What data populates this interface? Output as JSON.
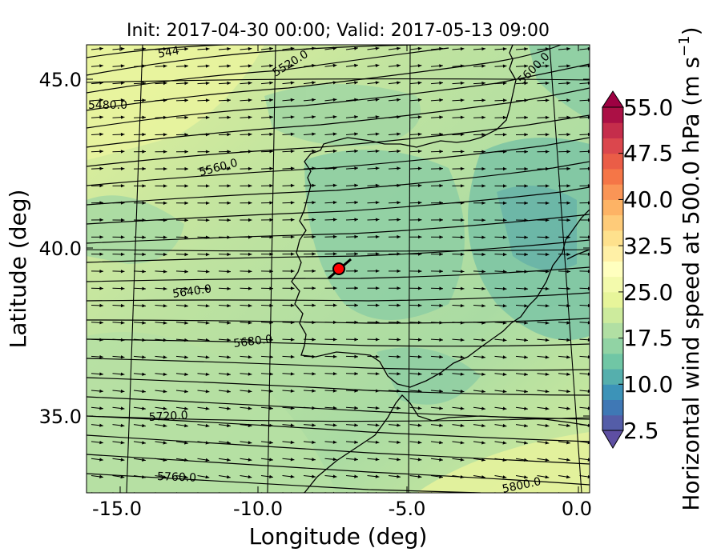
{
  "title": "Init: 2017-04-30 00:00; Valid: 2017-05-13 09:00",
  "axes": {
    "xlabel": "Longitude (deg)",
    "ylabel": "Latitude (deg)",
    "x_ticks": [
      "-15.0",
      "-10.0",
      "-5.0",
      "0.0"
    ],
    "y_ticks": [
      "35.0",
      "40.0",
      "45.0"
    ]
  },
  "chart_data": {
    "type": "heatmap",
    "title": "Init: 2017-04-30 00:00; Valid: 2017-05-13 09:00",
    "xlabel": "Longitude (deg)",
    "ylabel": "Latitude (deg)",
    "xlim": [
      -16.0,
      0.2
    ],
    "ylim": [
      32.6,
      46.0
    ],
    "x_ticks": [
      -15.0,
      -10.0,
      -5.0,
      0.0
    ],
    "y_ticks": [
      35.0,
      40.0,
      45.0
    ],
    "contour_labels": [
      "5480.0",
      "5520.0",
      "5560.0",
      "5600.0",
      "5640.0",
      "5680.0",
      "5720.0",
      "5760.0",
      "5800.0",
      "544"
    ],
    "colorbar": {
      "label": "Horizontal wind speed at 500.0 hPa (m s",
      "label_exp": "−1",
      "label_close": ")",
      "range": [
        2.5,
        55.0
      ],
      "step": 2.5,
      "tick_labels": [
        "2.5",
        "10.0",
        "17.5",
        "25.0",
        "32.5",
        "40.0",
        "47.5",
        "55.0"
      ],
      "extend": "both"
    },
    "marker": {
      "lon": -7.6,
      "lat": 39.3,
      "color": "#ff0000"
    },
    "grid": true
  }
}
